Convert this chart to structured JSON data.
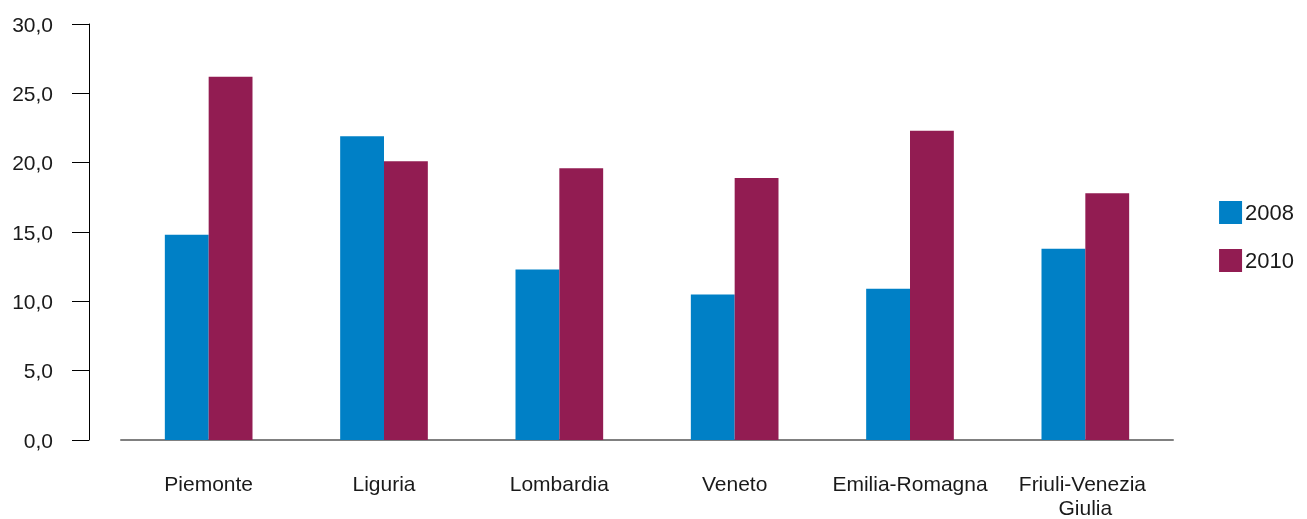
{
  "chart_data": {
    "type": "bar",
    "categories": [
      "Piemonte",
      "Liguria",
      "Lombardia",
      "Veneto",
      "Emilia-Romagna",
      "Friuli-Venezia Giulia"
    ],
    "series": [
      {
        "name": "2008",
        "color": "#0080c6",
        "values": [
          14.8,
          21.9,
          12.3,
          10.5,
          10.9,
          13.8
        ]
      },
      {
        "name": "2010",
        "color": "#921c52",
        "values": [
          26.2,
          20.1,
          19.6,
          18.9,
          22.3,
          17.8
        ]
      }
    ],
    "ylim": [
      0,
      30
    ],
    "yticks": [
      {
        "value": 0,
        "label": "0,0"
      },
      {
        "value": 5,
        "label": "5,0"
      },
      {
        "value": 10,
        "label": "10,0"
      },
      {
        "value": 15,
        "label": "15,0"
      },
      {
        "value": 20,
        "label": "20,0"
      },
      {
        "value": 25,
        "label": "25,0"
      },
      {
        "value": 30,
        "label": "30,0"
      }
    ],
    "grid": false,
    "legend": "right"
  }
}
